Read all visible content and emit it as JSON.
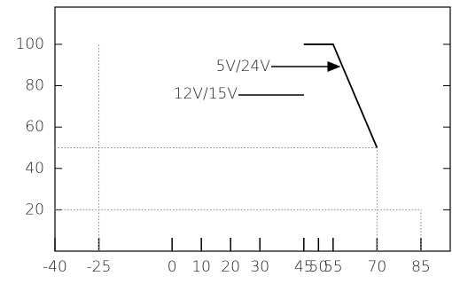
{
  "chart_data": {
    "type": "line",
    "x": [
      45,
      55,
      70
    ],
    "series": [
      {
        "color": "#000000",
        "values": [
          100,
          100,
          50
        ]
      }
    ],
    "guides": [
      {
        "x": [
          -25,
          -25
        ],
        "y": [
          0,
          100
        ]
      },
      {
        "x": [
          -40,
          70
        ],
        "y": [
          50,
          50
        ]
      },
      {
        "x": [
          70,
          70
        ],
        "y": [
          0,
          50
        ]
      },
      {
        "x": [
          -40,
          85
        ],
        "y": [
          20,
          20
        ]
      },
      {
        "x": [
          85,
          85
        ],
        "y": [
          0,
          20
        ]
      }
    ],
    "annotations": [
      "5V/24V",
      "12V/15V"
    ],
    "xlim": [
      -40,
      95
    ],
    "xticks": [
      -40,
      -25,
      0,
      10,
      20,
      30,
      45,
      50,
      55,
      70,
      85
    ],
    "ylim": [
      0,
      118
    ],
    "yticks": [
      20,
      40,
      60,
      80,
      100
    ]
  }
}
